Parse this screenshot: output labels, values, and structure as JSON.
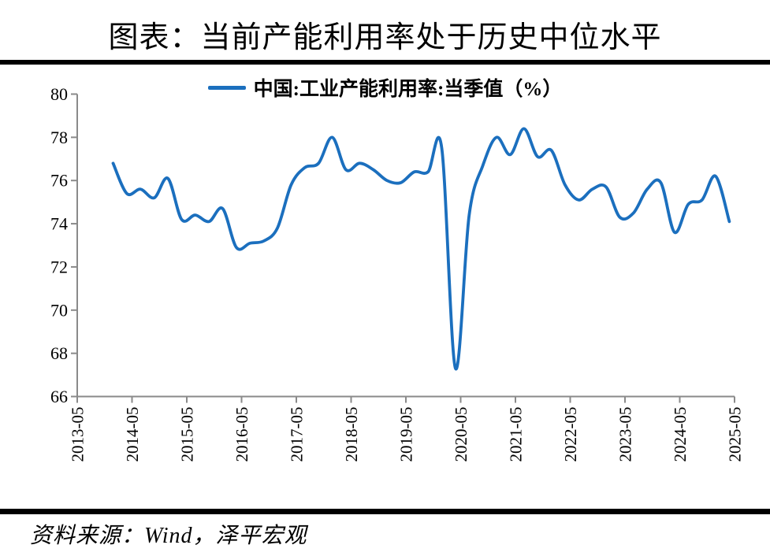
{
  "title": "图表：当前产能利用率处于历史中位水平",
  "legend": {
    "label": "中国:工业产能利用率:当季值（%）"
  },
  "source": "资料来源：Wind，泽平宏观",
  "colors": {
    "line": "#1B6FBE",
    "axis": "#8A8A8A",
    "rule": "#000000",
    "text": "#000000"
  },
  "chart_data": {
    "type": "line",
    "title": "图表：当前产能利用率处于历史中位水平",
    "series": [
      {
        "name": "中国:工业产能利用率:当季值（%）",
        "x": [
          "2013-12",
          "2014-03",
          "2014-06",
          "2014-09",
          "2014-12",
          "2015-03",
          "2015-06",
          "2015-09",
          "2015-12",
          "2016-03",
          "2016-06",
          "2016-09",
          "2016-12",
          "2017-03",
          "2017-06",
          "2017-09",
          "2017-12",
          "2018-03",
          "2018-06",
          "2018-09",
          "2018-12",
          "2019-03",
          "2019-06",
          "2019-09",
          "2019-12",
          "2020-03",
          "2020-06",
          "2020-09",
          "2020-12",
          "2021-03",
          "2021-06",
          "2021-09",
          "2021-12",
          "2022-03",
          "2022-06",
          "2022-09",
          "2022-12",
          "2023-03",
          "2023-06",
          "2023-09",
          "2023-12",
          "2024-03",
          "2024-06",
          "2024-09",
          "2024-12",
          "2025-03"
        ],
        "values": [
          76.8,
          75.4,
          75.6,
          75.2,
          76.1,
          74.2,
          74.4,
          74.1,
          74.7,
          72.9,
          73.1,
          73.2,
          73.8,
          75.8,
          76.6,
          76.8,
          78.0,
          76.5,
          76.8,
          76.5,
          76.0,
          75.9,
          76.4,
          76.4,
          77.5,
          67.3,
          74.4,
          76.7,
          78.0,
          77.2,
          78.4,
          77.1,
          77.4,
          75.8,
          75.1,
          75.6,
          75.7,
          74.3,
          74.5,
          75.6,
          75.9,
          73.6,
          74.9,
          75.1,
          76.2,
          74.1
        ]
      }
    ],
    "ylim": [
      66,
      80
    ],
    "yticks": [
      66,
      68,
      70,
      72,
      74,
      76,
      78,
      80
    ],
    "xticks": [
      "2013-05",
      "2014-05",
      "2015-05",
      "2016-05",
      "2017-05",
      "2018-05",
      "2019-05",
      "2020-05",
      "2021-05",
      "2022-05",
      "2023-05",
      "2024-05",
      "2025-05"
    ],
    "grid": false,
    "legend_position": "top",
    "smooth": true
  }
}
